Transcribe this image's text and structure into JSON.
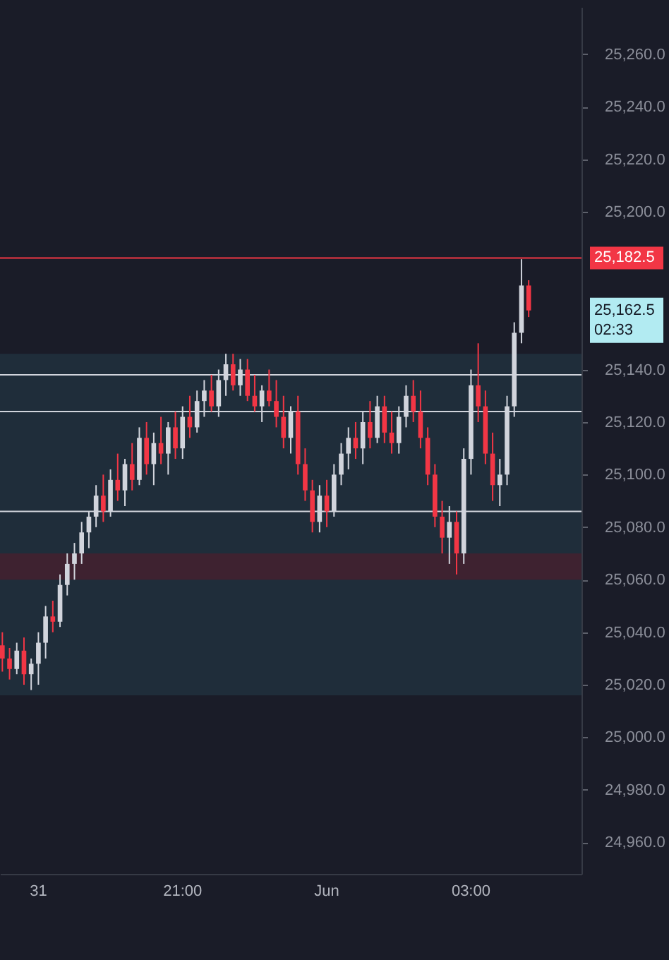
{
  "chart_data": {
    "type": "candlestick",
    "categories": [
      null,
      null,
      null,
      null,
      null,
      "31",
      null,
      null,
      null,
      null,
      null,
      null,
      null,
      null,
      null,
      null,
      null,
      null,
      null,
      null,
      null,
      null,
      null,
      null,
      null,
      "21:00",
      null,
      null,
      null,
      null,
      null,
      null,
      null,
      null,
      null,
      null,
      null,
      null,
      null,
      null,
      null,
      null,
      null,
      null,
      null,
      "Jun",
      null,
      null,
      null,
      null,
      null,
      null,
      null,
      null,
      null,
      null,
      null,
      null,
      null,
      null,
      null,
      null,
      null,
      null,
      null,
      "03:00",
      null,
      null,
      null,
      null,
      null,
      null,
      null,
      null,
      null,
      null,
      null,
      null,
      null,
      null,
      null
    ],
    "ohlc": [
      [
        25035,
        25040,
        25025,
        25030
      ],
      [
        25030,
        25034,
        25022,
        25026
      ],
      [
        25026,
        25036,
        25024,
        25033
      ],
      [
        25033,
        25038,
        25020,
        25024
      ],
      [
        25024,
        25030,
        25018,
        25028
      ],
      [
        25028,
        25040,
        25020,
        25036
      ],
      [
        25036,
        25050,
        25030,
        25046
      ],
      [
        25046,
        25052,
        25040,
        25044
      ],
      [
        25044,
        25062,
        25042,
        25058
      ],
      [
        25058,
        25070,
        25054,
        25066
      ],
      [
        25066,
        25074,
        25060,
        25070
      ],
      [
        25070,
        25082,
        25066,
        25078
      ],
      [
        25078,
        25086,
        25072,
        25084
      ],
      [
        25084,
        25096,
        25080,
        25092
      ],
      [
        25092,
        25100,
        25082,
        25086
      ],
      [
        25086,
        25102,
        25084,
        25098
      ],
      [
        25098,
        25108,
        25090,
        25094
      ],
      [
        25094,
        25106,
        25088,
        25104
      ],
      [
        25104,
        25112,
        25094,
        25098
      ],
      [
        25098,
        25118,
        25096,
        25114
      ],
      [
        25114,
        25120,
        25100,
        25104
      ],
      [
        25104,
        25116,
        25096,
        25112
      ],
      [
        25112,
        25122,
        25104,
        25108
      ],
      [
        25108,
        25120,
        25100,
        25118
      ],
      [
        25118,
        25124,
        25106,
        25110
      ],
      [
        25110,
        25126,
        25106,
        25122
      ],
      [
        25122,
        25130,
        25114,
        25118
      ],
      [
        25118,
        25132,
        25116,
        25128
      ],
      [
        25128,
        25136,
        25122,
        25132
      ],
      [
        25132,
        25138,
        25124,
        25126
      ],
      [
        25126,
        25140,
        25122,
        25136
      ],
      [
        25136,
        25146,
        25130,
        25142
      ],
      [
        25142,
        25146,
        25132,
        25134
      ],
      [
        25134,
        25144,
        25130,
        25140
      ],
      [
        25140,
        25144,
        25128,
        25130
      ],
      [
        25130,
        25138,
        25124,
        25126
      ],
      [
        25126,
        25134,
        25120,
        25132
      ],
      [
        25132,
        25140,
        25126,
        25128
      ],
      [
        25128,
        25136,
        25118,
        25122
      ],
      [
        25122,
        25130,
        25110,
        25114
      ],
      [
        25114,
        25126,
        25108,
        25124
      ],
      [
        25124,
        25130,
        25100,
        25104
      ],
      [
        25104,
        25110,
        25090,
        25094
      ],
      [
        25094,
        25098,
        25078,
        25082
      ],
      [
        25082,
        25096,
        25078,
        25092
      ],
      [
        25092,
        25098,
        25080,
        25086
      ],
      [
        25086,
        25104,
        25084,
        25100
      ],
      [
        25100,
        25112,
        25096,
        25108
      ],
      [
        25108,
        25118,
        25102,
        25114
      ],
      [
        25114,
        25120,
        25106,
        25110
      ],
      [
        25110,
        25124,
        25104,
        25120
      ],
      [
        25120,
        25128,
        25110,
        25114
      ],
      [
        25114,
        25130,
        25112,
        25126
      ],
      [
        25126,
        25130,
        25112,
        25116
      ],
      [
        25116,
        25124,
        25108,
        25112
      ],
      [
        25112,
        25126,
        25108,
        25122
      ],
      [
        25122,
        25134,
        25118,
        25130
      ],
      [
        25130,
        25136,
        25120,
        25124
      ],
      [
        25124,
        25132,
        25110,
        25114
      ],
      [
        25114,
        25118,
        25096,
        25100
      ],
      [
        25100,
        25104,
        25080,
        25084
      ],
      [
        25084,
        25090,
        25070,
        25076
      ],
      [
        25076,
        25088,
        25066,
        25082
      ],
      [
        25082,
        25086,
        25062,
        25070
      ],
      [
        25070,
        25110,
        25066,
        25106
      ],
      [
        25106,
        25140,
        25100,
        25134
      ],
      [
        25134,
        25150,
        25120,
        25126
      ],
      [
        25126,
        25132,
        25104,
        25108
      ],
      [
        25108,
        25116,
        25090,
        25096
      ],
      [
        25096,
        25106,
        25088,
        25100
      ],
      [
        25100,
        25130,
        25096,
        25126
      ],
      [
        25126,
        25158,
        25122,
        25154
      ],
      [
        25154,
        25182,
        25150,
        25172
      ],
      [
        25172,
        25174,
        25160,
        25162.5
      ],
      null,
      null,
      null,
      null,
      null,
      null,
      null
    ],
    "ylim": [
      24948,
      25278
    ],
    "yticks": [
      {
        "value": 24960,
        "label": "24,960.0"
      },
      {
        "value": 24980,
        "label": "24,980.0"
      },
      {
        "value": 25000,
        "label": "25,000.0"
      },
      {
        "value": 25020,
        "label": "25,020.0"
      },
      {
        "value": 25040,
        "label": "25,040.0"
      },
      {
        "value": 25060,
        "label": "25,060.0"
      },
      {
        "value": 25080,
        "label": "25,080.0"
      },
      {
        "value": 25100,
        "label": "25,100.0"
      },
      {
        "value": 25120,
        "label": "25,120.0"
      },
      {
        "value": 25140,
        "label": "25,140.0"
      },
      {
        "value": 25200,
        "label": "25,200.0"
      },
      {
        "value": 25220,
        "label": "25,220.0"
      },
      {
        "value": 25240,
        "label": "25,240.0"
      },
      {
        "value": 25260,
        "label": "25,260.0"
      }
    ],
    "grid": false,
    "bands": [
      {
        "axis": "y",
        "from": 25016,
        "to": 25146,
        "color": "#1f2d3a"
      },
      {
        "axis": "y",
        "from": 25060,
        "to": 25070,
        "color": "#3e2230"
      }
    ],
    "ref_lines": [
      {
        "axis": "y",
        "value": 25182.5,
        "label": "25,182.5",
        "color": "#f23645"
      },
      {
        "axis": "y",
        "value": 25138,
        "color": "#d1d4dc"
      },
      {
        "axis": "y",
        "value": 25124,
        "color": "#d1d4dc"
      },
      {
        "axis": "y",
        "value": 25086,
        "color": "#d1d4dc"
      }
    ],
    "annotations": [
      "25,162.5",
      "02:33"
    ]
  }
}
